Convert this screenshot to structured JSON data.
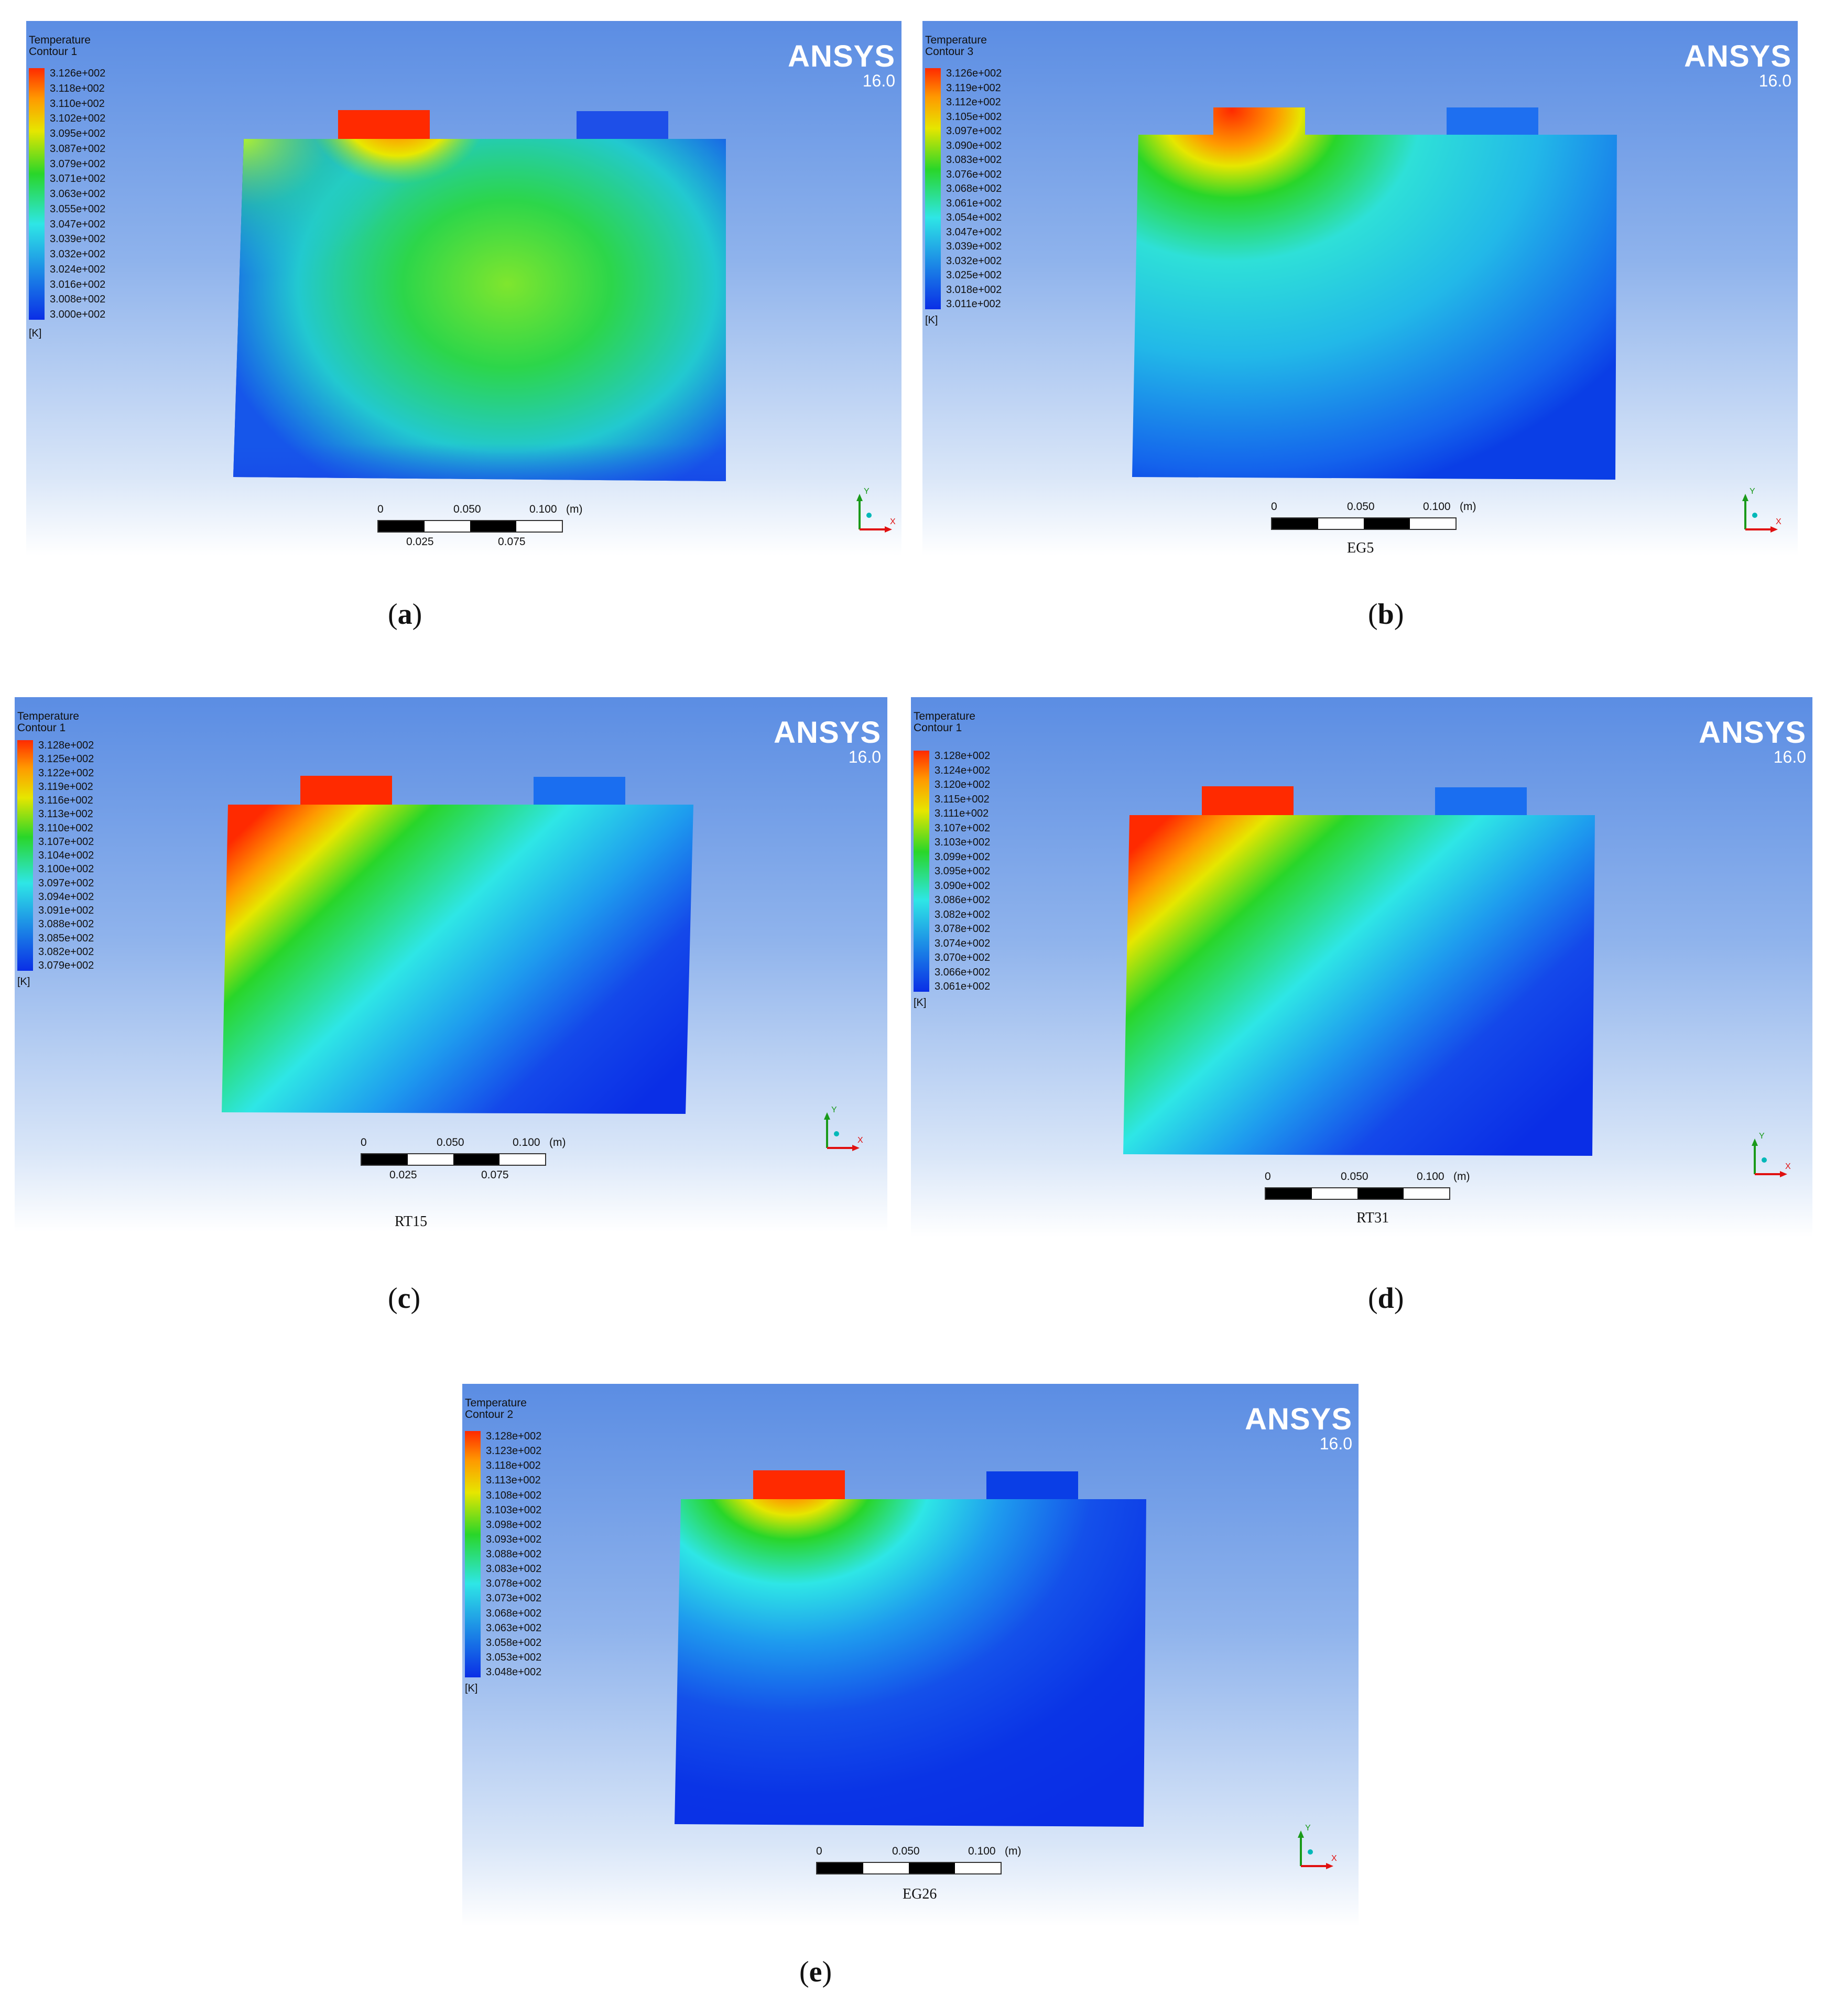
{
  "panels": [
    {
      "id": "a",
      "legend_title": "Temperature\nContour 1",
      "legend_values": [
        "3.126e+002",
        "3.118e+002",
        "3.110e+002",
        "3.102e+002",
        "3.095e+002",
        "3.087e+002",
        "3.079e+002",
        "3.071e+002",
        "3.063e+002",
        "3.055e+002",
        "3.047e+002",
        "3.039e+002",
        "3.032e+002",
        "3.024e+002",
        "3.016e+002",
        "3.008e+002",
        "3.000e+002"
      ],
      "unit": "[K]",
      "brand": "ANSYS",
      "version": "16.0",
      "scale_top": [
        "0",
        "0.050",
        "0.100",
        "(m)"
      ],
      "scale_bottom": [
        "0.025",
        "0.075"
      ],
      "material": "",
      "caption": "a",
      "axis_x": "X",
      "axis_y": "Y"
    },
    {
      "id": "b",
      "legend_title": "Temperature\nContour 3",
      "legend_values": [
        "3.126e+002",
        "3.119e+002",
        "3.112e+002",
        "3.105e+002",
        "3.097e+002",
        "3.090e+002",
        "3.083e+002",
        "3.076e+002",
        "3.068e+002",
        "3.061e+002",
        "3.054e+002",
        "3.047e+002",
        "3.039e+002",
        "3.032e+002",
        "3.025e+002",
        "3.018e+002",
        "3.011e+002"
      ],
      "unit": "[K]",
      "brand": "ANSYS",
      "version": "16.0",
      "scale_top": [
        "0",
        "0.050",
        "0.100",
        "(m)"
      ],
      "scale_bottom": [],
      "material": "EG5",
      "caption": "b",
      "axis_x": "X",
      "axis_y": "Y"
    },
    {
      "id": "c",
      "legend_title": "Temperature\nContour 1",
      "legend_values": [
        "3.128e+002",
        "3.125e+002",
        "3.122e+002",
        "3.119e+002",
        "3.116e+002",
        "3.113e+002",
        "3.110e+002",
        "3.107e+002",
        "3.104e+002",
        "3.100e+002",
        "3.097e+002",
        "3.094e+002",
        "3.091e+002",
        "3.088e+002",
        "3.085e+002",
        "3.082e+002",
        "3.079e+002"
      ],
      "unit": "[K]",
      "brand": "ANSYS",
      "version": "16.0",
      "scale_top": [
        "0",
        "0.050",
        "0.100",
        "(m)"
      ],
      "scale_bottom": [
        "0.025",
        "0.075"
      ],
      "material": "RT15",
      "caption": "c",
      "axis_x": "X",
      "axis_y": "Y"
    },
    {
      "id": "d",
      "legend_title": "Temperature\nContour 1",
      "legend_values": [
        "3.128e+002",
        "3.124e+002",
        "3.120e+002",
        "3.115e+002",
        "3.111e+002",
        "3.107e+002",
        "3.103e+002",
        "3.099e+002",
        "3.095e+002",
        "3.090e+002",
        "3.086e+002",
        "3.082e+002",
        "3.078e+002",
        "3.074e+002",
        "3.070e+002",
        "3.066e+002",
        "3.061e+002"
      ],
      "unit": "[K]",
      "brand": "ANSYS",
      "version": "16.0",
      "scale_top": [
        "0",
        "0.050",
        "0.100",
        "(m)"
      ],
      "scale_bottom": [],
      "material": "RT31",
      "caption": "d",
      "axis_x": "X",
      "axis_y": "Y"
    },
    {
      "id": "e",
      "legend_title": "Temperature\nContour 2",
      "legend_values": [
        "3.128e+002",
        "3.123e+002",
        "3.118e+002",
        "3.113e+002",
        "3.108e+002",
        "3.103e+002",
        "3.098e+002",
        "3.093e+002",
        "3.088e+002",
        "3.083e+002",
        "3.078e+002",
        "3.073e+002",
        "3.068e+002",
        "3.063e+002",
        "3.058e+002",
        "3.053e+002",
        "3.048e+002"
      ],
      "unit": "[K]",
      "brand": "ANSYS",
      "version": "16.0",
      "scale_top": [
        "0",
        "0.050",
        "0.100",
        "(m)"
      ],
      "scale_bottom": [],
      "material": "EG26",
      "caption": "e",
      "axis_x": "X",
      "axis_y": "Y"
    }
  ],
  "colors": {
    "hot": "#ff2a00",
    "orange": "#ff9900",
    "yellow": "#e6e600",
    "green": "#29d629",
    "cyan": "#2ee6e6",
    "blue": "#0a2ee6"
  }
}
